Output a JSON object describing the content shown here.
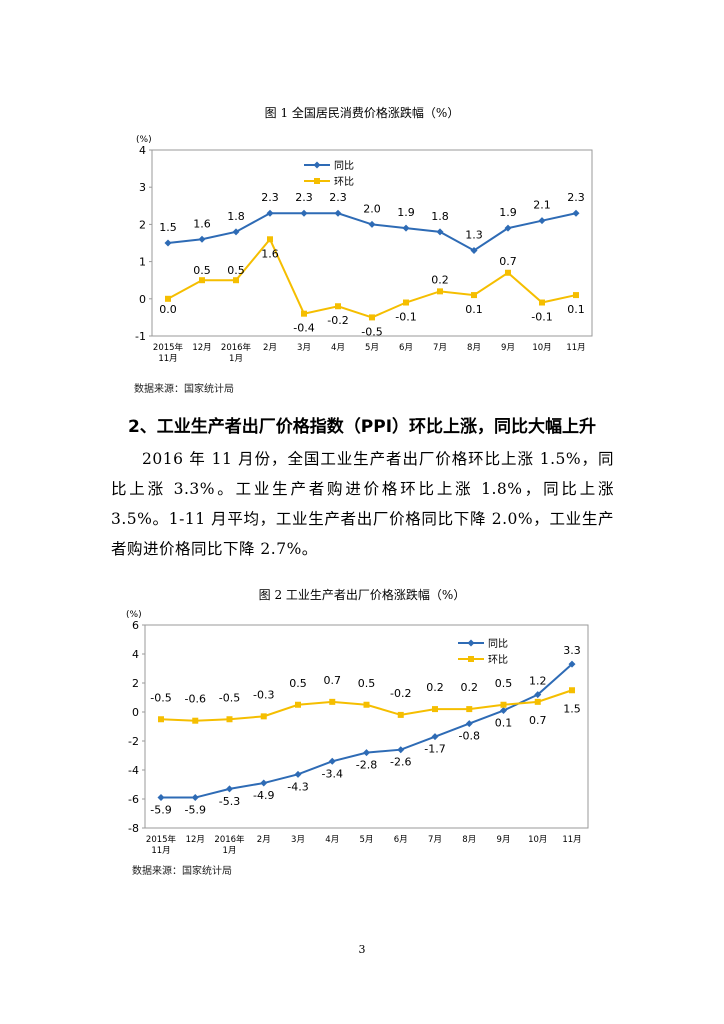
{
  "figure1": {
    "caption": "图 1  全国居民消费价格涨跌幅（%）",
    "source": "数据来源：国家统计局"
  },
  "section": {
    "heading": "2、工业生产者出厂价格指数（PPI）环比上涨，同比大幅上升",
    "paragraph": "2016 年 11 月份，全国工业生产者出厂价格环比上涨 1.5%，同比上涨 3.3%。工业生产者购进价格环比上涨 1.8%，同比上涨 3.5%。1-11 月平均，工业生产者出厂价格同比下降 2.0%，工业生产者购进价格同比下降 2.7%。"
  },
  "figure2": {
    "caption": "图 2  工业生产者出厂价格涨跌幅（%）",
    "source": "数据来源：国家统计局"
  },
  "page_number": "3",
  "colors": {
    "yoy": "#2e6bb5",
    "mom": "#f5be00"
  },
  "chart_data": [
    {
      "type": "line",
      "unit_label": "(%)",
      "ylim": [
        -1,
        4
      ],
      "yticks": [
        "4",
        "3",
        "2",
        "1",
        "0",
        "-1"
      ],
      "categories": [
        "2015年11月",
        "12月",
        "2016年1月",
        "2月",
        "3月",
        "4月",
        "5月",
        "6月",
        "7月",
        "8月",
        "9月",
        "10月",
        "11月"
      ],
      "legend": [
        "同比",
        "环比"
      ],
      "series": [
        {
          "name": "同比",
          "values": [
            1.5,
            1.6,
            1.8,
            2.3,
            2.3,
            2.3,
            2.0,
            1.9,
            1.8,
            1.3,
            1.9,
            2.1,
            2.3
          ],
          "labels": [
            "1.5",
            "1.6",
            "1.8",
            "2.3",
            "2.3",
            "2.3",
            "2.0",
            "1.9",
            "1.8",
            "1.3",
            "1.9",
            "2.1",
            "2.3"
          ]
        },
        {
          "name": "环比",
          "values": [
            0.0,
            0.5,
            0.5,
            1.6,
            -0.4,
            -0.2,
            -0.5,
            -0.1,
            0.2,
            0.1,
            0.7,
            -0.1,
            0.1
          ],
          "labels": [
            "0.0",
            "0.5",
            "0.5",
            "1.6",
            "-0.4",
            "-0.2",
            "-0.5",
            "-0.1",
            "0.2",
            "0.1",
            "0.7",
            "-0.1",
            "0.1"
          ]
        }
      ]
    },
    {
      "type": "line",
      "unit_label": "(%)",
      "ylim": [
        -8,
        6
      ],
      "yticks": [
        "6",
        "4",
        "2",
        "0",
        "-2",
        "-4",
        "-6",
        "-8"
      ],
      "categories": [
        "2015年11月",
        "12月",
        "2016年1月",
        "2月",
        "3月",
        "4月",
        "5月",
        "6月",
        "7月",
        "8月",
        "9月",
        "10月",
        "11月"
      ],
      "legend": [
        "同比",
        "环比"
      ],
      "series": [
        {
          "name": "同比",
          "values": [
            -5.9,
            -5.9,
            -5.3,
            -4.9,
            -4.3,
            -3.4,
            -2.8,
            -2.6,
            -1.7,
            -0.8,
            0.1,
            1.2,
            3.3
          ],
          "labels": [
            "-5.9",
            "-5.9",
            "-5.3",
            "-4.9",
            "-4.3",
            "-3.4",
            "-2.8",
            "-2.6",
            "-1.7",
            "-0.8",
            "0.1",
            "1.2",
            "3.3"
          ]
        },
        {
          "name": "环比",
          "values": [
            -0.5,
            -0.6,
            -0.5,
            -0.3,
            0.5,
            0.7,
            0.5,
            -0.2,
            0.2,
            0.2,
            0.5,
            0.7,
            1.5
          ],
          "labels": [
            "-0.5",
            "-0.6",
            "-0.5",
            "-0.3",
            "0.5",
            "0.7",
            "0.5",
            "-0.2",
            "0.2",
            "0.2",
            "0.5",
            "0.7",
            "1.5"
          ]
        }
      ]
    }
  ]
}
